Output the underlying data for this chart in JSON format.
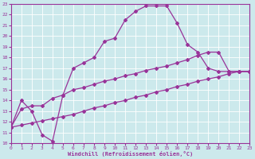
{
  "xlabel": "Windchill (Refroidissement éolien,°C)",
  "xlim": [
    0,
    23
  ],
  "ylim": [
    10,
    23
  ],
  "xticks": [
    0,
    1,
    2,
    3,
    4,
    5,
    6,
    7,
    8,
    9,
    10,
    11,
    12,
    13,
    14,
    15,
    16,
    17,
    18,
    19,
    20,
    21,
    22,
    23
  ],
  "yticks": [
    10,
    11,
    12,
    13,
    14,
    15,
    16,
    17,
    18,
    19,
    20,
    21,
    22,
    23
  ],
  "bg_color": "#cce9ec",
  "line_color": "#993399",
  "grid_color": "#ffffff",
  "curve1_x": [
    0,
    1,
    2,
    3,
    4,
    5,
    6,
    7,
    8,
    9,
    10,
    11,
    12,
    13,
    14,
    15,
    16,
    17,
    18,
    19,
    20,
    21,
    22,
    23
  ],
  "curve1_y": [
    11.5,
    14.0,
    13.0,
    10.8,
    10.2,
    14.5,
    17.0,
    17.5,
    18.0,
    19.5,
    19.8,
    21.5,
    22.3,
    22.8,
    22.8,
    22.8,
    21.2,
    19.2,
    18.5,
    17.0,
    16.7,
    16.7,
    16.7,
    16.7
  ],
  "curve2_x": [
    0,
    1,
    2,
    3,
    4,
    5,
    6,
    7,
    8,
    9,
    10,
    11,
    12,
    13,
    14,
    15,
    16,
    17,
    18,
    19,
    20,
    21,
    22,
    23
  ],
  "curve2_y": [
    11.5,
    13.2,
    13.5,
    13.5,
    14.2,
    14.5,
    15.0,
    15.2,
    15.5,
    15.8,
    16.0,
    16.3,
    16.5,
    16.8,
    17.0,
    17.2,
    17.5,
    17.8,
    18.2,
    18.5,
    18.5,
    16.7,
    16.7,
    16.7
  ],
  "curve3_x": [
    0,
    1,
    2,
    3,
    4,
    5,
    6,
    7,
    8,
    9,
    10,
    11,
    12,
    13,
    14,
    15,
    16,
    17,
    18,
    19,
    20,
    21,
    22,
    23
  ],
  "curve3_y": [
    11.5,
    11.7,
    11.9,
    12.1,
    12.3,
    12.5,
    12.7,
    13.0,
    13.3,
    13.5,
    13.8,
    14.0,
    14.3,
    14.5,
    14.8,
    15.0,
    15.3,
    15.5,
    15.8,
    16.0,
    16.2,
    16.5,
    16.7,
    16.7
  ]
}
